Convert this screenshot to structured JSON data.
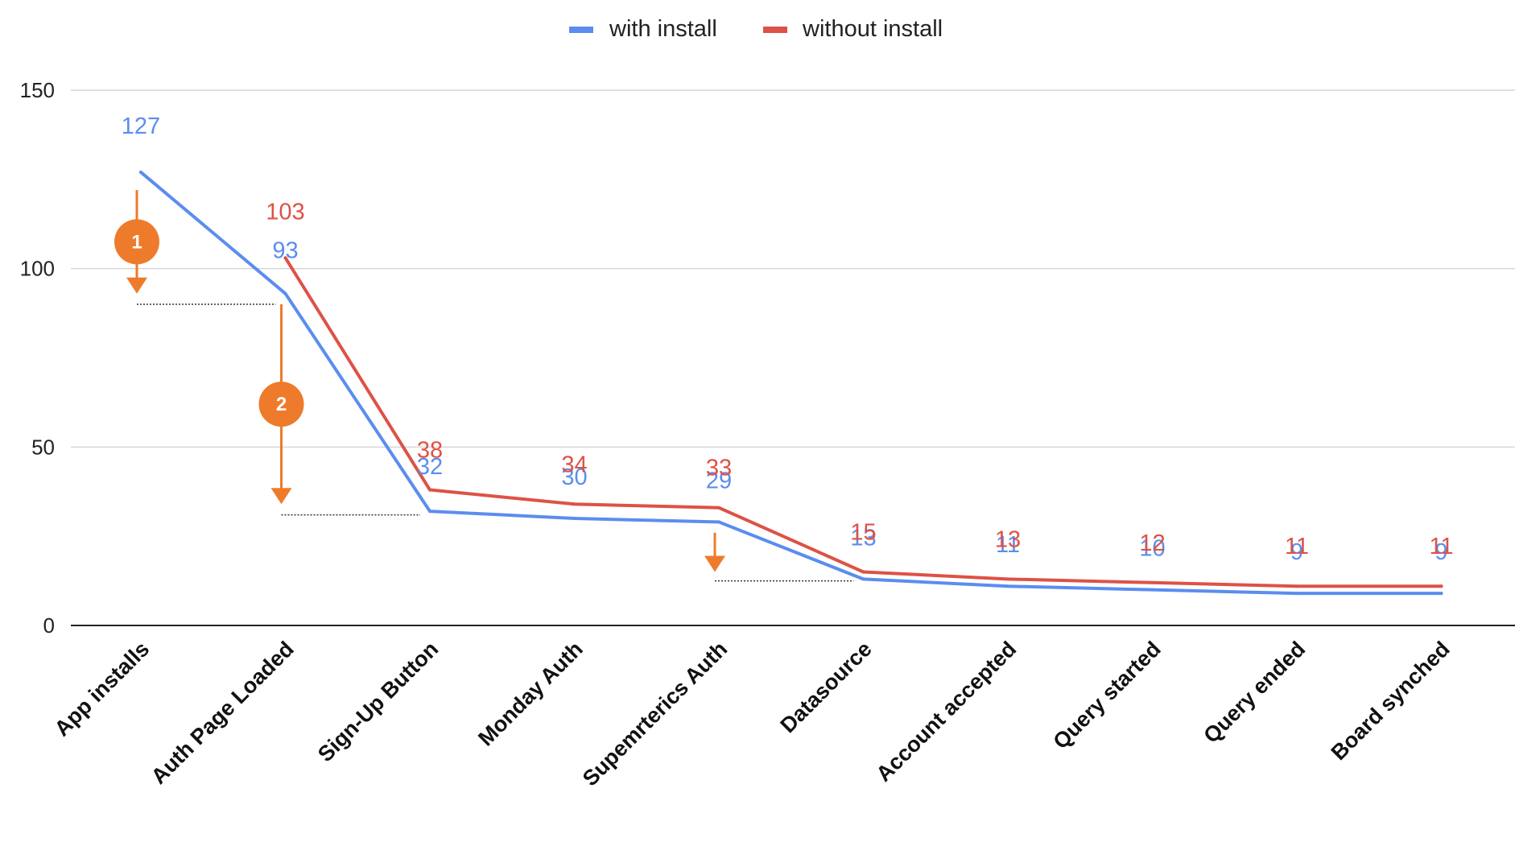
{
  "chart_data": {
    "type": "line",
    "title": "",
    "xlabel": "",
    "ylabel": "",
    "ylim": [
      0,
      150
    ],
    "yticks": [
      0,
      50,
      100,
      150
    ],
    "grid": true,
    "legend_position": "top-center",
    "categories": [
      "App installs",
      "Auth Page Loaded",
      "Sign-Up Button",
      "Monday Auth",
      "Supemrterics Auth",
      "Datasource",
      "Account accepted",
      "Query started",
      "Query ended",
      "Board synched"
    ],
    "series": [
      {
        "name": "with install",
        "color": "#5b8def",
        "values": [
          127,
          93,
          32,
          30,
          29,
          13,
          11,
          10,
          9,
          9
        ],
        "labels": [
          "127",
          "93",
          "32",
          "30",
          "29",
          "13",
          "11",
          "10",
          "9",
          "9"
        ]
      },
      {
        "name": "without install",
        "color": "#dd5246",
        "values": [
          null,
          103,
          38,
          34,
          33,
          15,
          13,
          12,
          11,
          11
        ],
        "labels": [
          "",
          "103",
          "38",
          "34",
          "33",
          "15",
          "13",
          "12",
          "11",
          "11"
        ]
      }
    ],
    "annotations": {
      "color": "#ee7b2b",
      "drop_markers": [
        {
          "label": "1",
          "category": "App installs",
          "from": 122,
          "to": 93,
          "level_from": "App installs",
          "level_to": "Auth Page Loaded",
          "level_value": 90
        },
        {
          "label": "2",
          "category": "Auth Page Loaded",
          "from": 90,
          "to": 34,
          "level_from": "Auth Page Loaded",
          "level_to": "Sign-Up Button",
          "level_value": 31
        },
        {
          "label": "",
          "category": "Supemrterics Auth",
          "from": 26,
          "to": 15,
          "level_from": "Supemrterics Auth",
          "level_to": "Datasource",
          "level_value": 12.5
        }
      ]
    }
  }
}
